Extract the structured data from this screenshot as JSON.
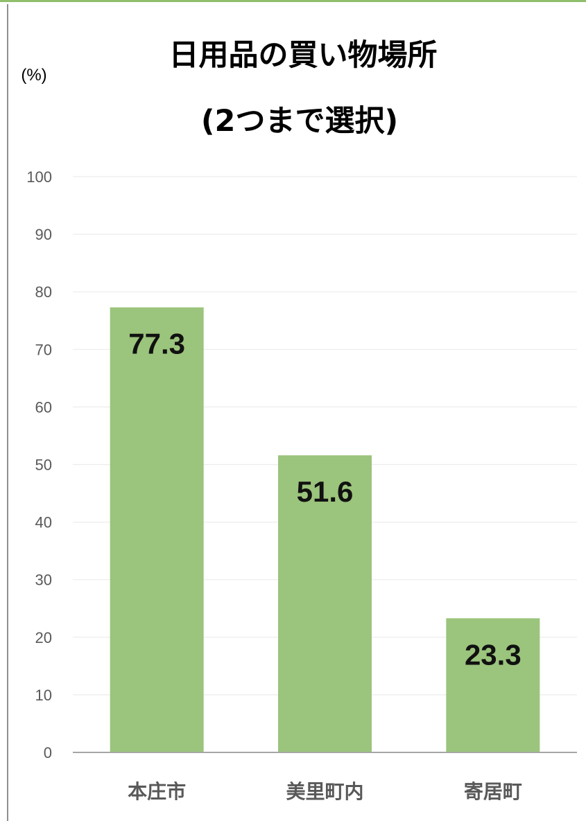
{
  "chart_data": {
    "type": "bar",
    "title_line1": "日用品の買い物場所",
    "title_line2": "(2つまで選択)",
    "ylabel": "(%)",
    "xlabel": "",
    "categories": [
      "本庄市",
      "美里町内",
      "寄居町"
    ],
    "values": [
      77.3,
      51.6,
      23.3
    ],
    "data_labels": [
      "77.3",
      "51.6",
      "23.3"
    ],
    "ylim": [
      0,
      100
    ],
    "yticks": [
      "0",
      "10",
      "20",
      "30",
      "40",
      "50",
      "60",
      "70",
      "80",
      "90",
      "100"
    ],
    "grid": true,
    "legend": "none",
    "bar_color": "#9bc47c"
  }
}
